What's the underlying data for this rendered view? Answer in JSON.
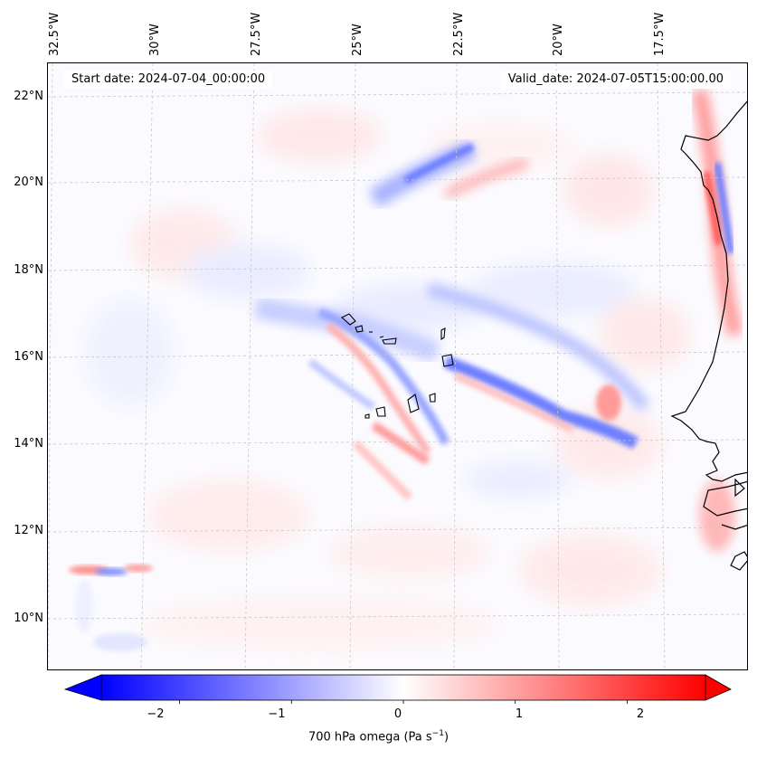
{
  "header": {
    "start_date": "Start date: 2024-07-04_00:00:00",
    "valid_date": "Valid_date: 2024-07-05T15:00:00.00"
  },
  "longitude_labels": [
    "32.5°W",
    "30°W",
    "27.5°W",
    "25°W",
    "22.5°W",
    "20°W",
    "17.5°W"
  ],
  "latitude_labels": [
    "22°N",
    "20°N",
    "18°N",
    "16°N",
    "14°N",
    "12°N",
    "10°N"
  ],
  "map": {
    "region": "Eastern tropical Atlantic, Cabo Verde islands and West African coast",
    "variable": "700 hPa omega",
    "gridlines": true,
    "colormap": "bwr",
    "negative_color": "#0000ff",
    "neutral_color": "#ffffff",
    "positive_color": "#ff0000",
    "coastline_color": "#000000"
  },
  "colorbar": {
    "range": [
      -2.7,
      2.7
    ],
    "ticks": [
      "−2",
      "−1",
      "0",
      "1",
      "2"
    ],
    "tick_values": [
      -2,
      -1,
      0,
      1,
      2
    ],
    "label": "700 hPa omega (Pa s",
    "label_exponent": "−1",
    "label_close": ")",
    "extend": "both"
  }
}
